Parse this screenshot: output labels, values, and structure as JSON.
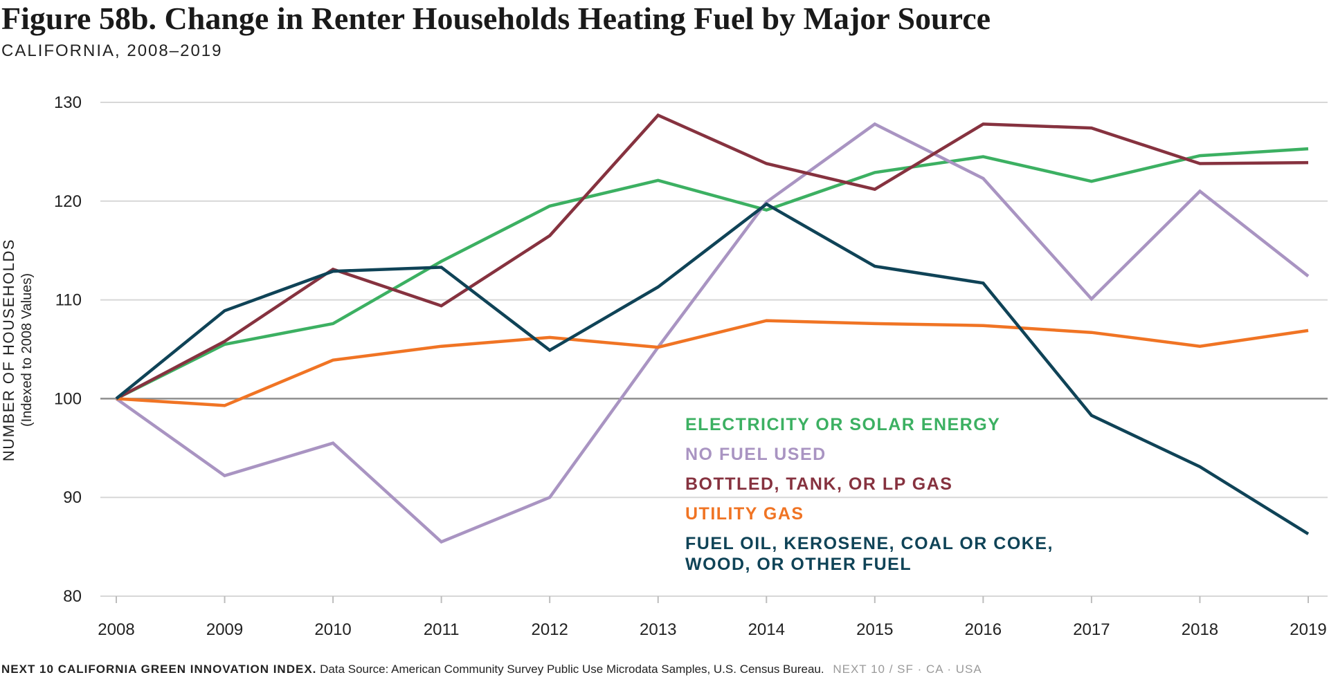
{
  "title": "Figure 58b. Change in Renter Households Heating Fuel by Major Source",
  "subtitle": "CALIFORNIA, 2008–2019",
  "footer": {
    "brand": "NEXT 10 CALIFORNIA GREEN INNOVATION INDEX.",
    "source": "Data Source: American Community Survey Public Use Microdata Samples, U.S. Census Bureau.",
    "tag": "NEXT 10  /  SF · CA · USA"
  },
  "chart_data": {
    "type": "line",
    "ylabel": "NUMBER OF HOUSEHOLDS",
    "ylabel_sub": "(Indexed to 2008 Values)",
    "ylim": [
      80,
      130
    ],
    "yticks": [
      80,
      90,
      100,
      110,
      120,
      130
    ],
    "grid": true,
    "baseline": 100,
    "legend_position": "center-right",
    "x": [
      "2008",
      "2009",
      "2010",
      "2011",
      "2012",
      "2013",
      "2014",
      "2015",
      "2016",
      "2017",
      "2018",
      "2019"
    ],
    "series": [
      {
        "name": "ELECTRICITY OR SOLAR ENERGY",
        "color": "#3cb062",
        "values": [
          100,
          105.5,
          107.6,
          113.9,
          119.5,
          122.1,
          119.1,
          122.9,
          124.5,
          122.0,
          124.6,
          125.3
        ]
      },
      {
        "name": "NO FUEL USED",
        "color": "#a994c2",
        "values": [
          100,
          92.2,
          95.5,
          85.5,
          90.0,
          105.2,
          119.9,
          127.8,
          122.3,
          110.1,
          121.0,
          112.4
        ]
      },
      {
        "name": "BOTTLED, TANK, OR LP GAS",
        "color": "#86323f",
        "values": [
          100,
          105.8,
          113.1,
          109.4,
          116.5,
          128.7,
          123.8,
          121.2,
          127.8,
          127.4,
          123.8,
          123.9
        ]
      },
      {
        "name": "UTILITY GAS",
        "color": "#f07424",
        "values": [
          100,
          99.3,
          103.9,
          105.3,
          106.2,
          105.2,
          107.9,
          107.6,
          107.4,
          106.7,
          105.3,
          106.9
        ]
      },
      {
        "name": "FUEL OIL, KEROSENE, COAL OR COKE, WOOD, OR OTHER FUEL",
        "color": "#0f4357",
        "values": [
          100,
          108.9,
          112.9,
          113.3,
          104.9,
          111.3,
          119.7,
          113.4,
          111.7,
          98.3,
          93.1,
          86.3
        ]
      }
    ]
  }
}
